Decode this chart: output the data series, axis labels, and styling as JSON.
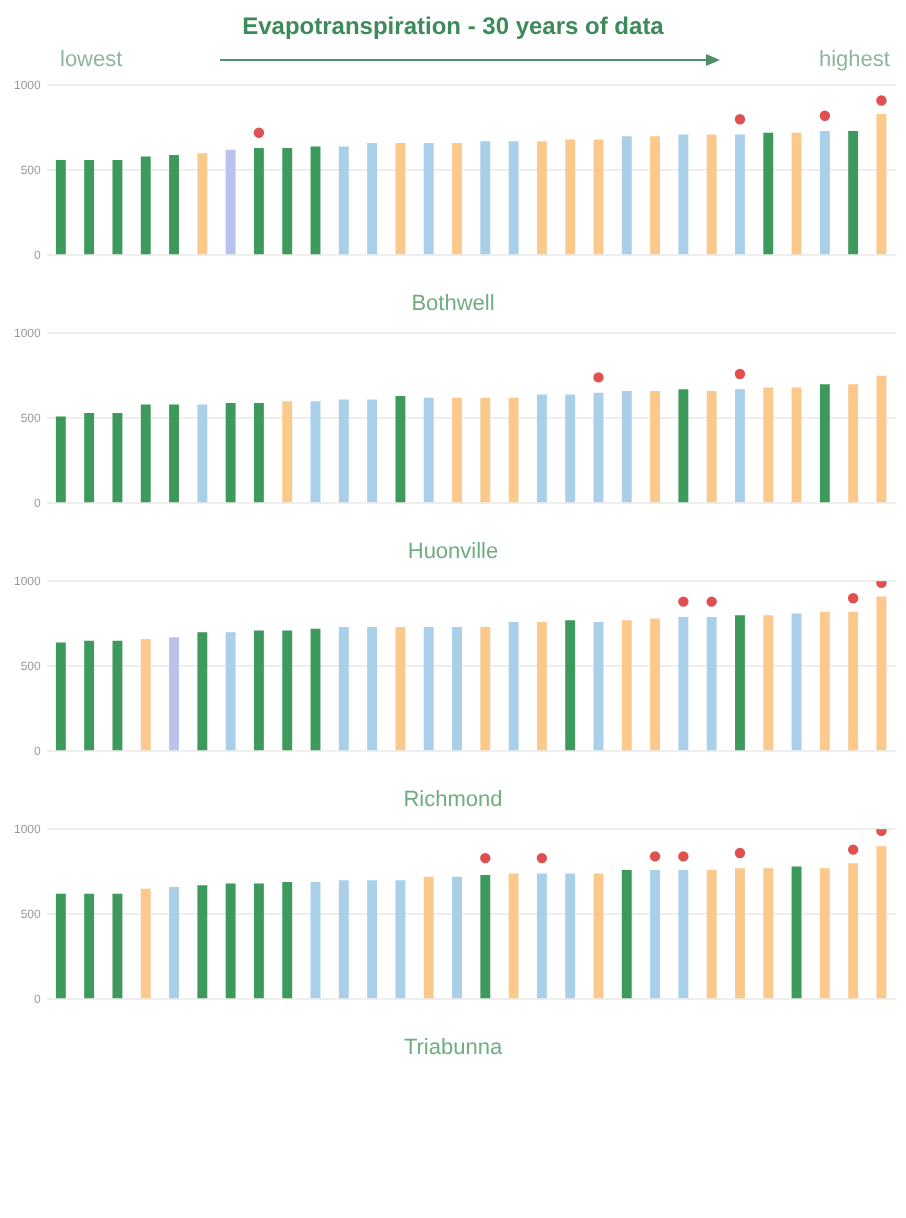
{
  "chart_data": [
    {
      "type": "bar",
      "title": "Evapotranspiration - 30 years of data",
      "annotations": [
        "lowest",
        "highest"
      ],
      "xlabel": "Bothwell",
      "categories": [
        null,
        null,
        null,
        null,
        null,
        null,
        null,
        null,
        null,
        null,
        null,
        null,
        null,
        null,
        null,
        null,
        null,
        null,
        null,
        null,
        null,
        null,
        null,
        null,
        null,
        null,
        null,
        null,
        null,
        null
      ],
      "ylim": [
        0,
        1000
      ],
      "yticks": [
        0,
        500,
        1000
      ],
      "grid": "y",
      "legend": false,
      "marker": "circle",
      "series": [
        {
          "colors": [
            "#3d9a5c",
            "#3d9a5c",
            "#3d9a5c",
            "#3d9a5c",
            "#3d9a5c",
            "#fbc98c",
            "#b9c3ec",
            "#3d9a5c",
            "#3d9a5c",
            "#3d9a5c",
            "#a9cfe9",
            "#a9cfe9",
            "#fbc98c",
            "#a9cfe9",
            "#fbc98c",
            "#a9cfe9",
            "#a9cfe9",
            "#fbc98c",
            "#fbc98c",
            "#fbc98c",
            "#a9cfe9",
            "#fbc98c",
            "#a9cfe9",
            "#fbc98c",
            "#a9cfe9",
            "#3d9a5c",
            "#fbc98c",
            "#a9cfe9",
            "#3d9a5c",
            "#fbc98c"
          ],
          "values": [
            560,
            560,
            560,
            580,
            590,
            600,
            620,
            630,
            630,
            640,
            640,
            660,
            660,
            660,
            660,
            670,
            670,
            670,
            680,
            680,
            700,
            700,
            710,
            710,
            710,
            720,
            720,
            730,
            730,
            830
          ]
        },
        {
          "type": "scatter",
          "color": "#e05050",
          "values": [
            null,
            null,
            null,
            null,
            null,
            null,
            null,
            720,
            null,
            null,
            null,
            null,
            null,
            null,
            null,
            null,
            null,
            null,
            null,
            null,
            null,
            null,
            null,
            null,
            800,
            null,
            null,
            820,
            null,
            910
          ]
        }
      ]
    },
    {
      "type": "bar",
      "xlabel": "Huonville",
      "categories": [
        null,
        null,
        null,
        null,
        null,
        null,
        null,
        null,
        null,
        null,
        null,
        null,
        null,
        null,
        null,
        null,
        null,
        null,
        null,
        null,
        null,
        null,
        null,
        null,
        null,
        null,
        null,
        null,
        null,
        null
      ],
      "ylim": [
        0,
        1000
      ],
      "yticks": [
        0,
        500,
        1000
      ],
      "grid": "y",
      "legend": false,
      "marker": "circle",
      "series": [
        {
          "colors": [
            "#3d9a5c",
            "#3d9a5c",
            "#3d9a5c",
            "#3d9a5c",
            "#3d9a5c",
            "#a9cfe9",
            "#3d9a5c",
            "#3d9a5c",
            "#fbc98c",
            "#a9cfe9",
            "#a9cfe9",
            "#a9cfe9",
            "#3d9a5c",
            "#a9cfe9",
            "#fbc98c",
            "#fbc98c",
            "#fbc98c",
            "#a9cfe9",
            "#a9cfe9",
            "#a9cfe9",
            "#a9cfe9",
            "#fbc98c",
            "#3d9a5c",
            "#fbc98c",
            "#a9cfe9",
            "#fbc98c",
            "#fbc98c",
            "#3d9a5c",
            "#fbc98c",
            "#fbc98c"
          ],
          "values": [
            510,
            530,
            530,
            580,
            580,
            580,
            590,
            590,
            600,
            600,
            610,
            610,
            630,
            620,
            620,
            620,
            620,
            640,
            640,
            650,
            660,
            660,
            670,
            660,
            670,
            680,
            680,
            700,
            700,
            750
          ]
        },
        {
          "type": "scatter",
          "color": "#e05050",
          "values": [
            null,
            null,
            null,
            null,
            null,
            null,
            null,
            null,
            null,
            null,
            null,
            null,
            null,
            null,
            null,
            null,
            null,
            null,
            null,
            740,
            null,
            null,
            null,
            null,
            760,
            null,
            null,
            null,
            null,
            null
          ]
        }
      ]
    },
    {
      "type": "bar",
      "xlabel": "Richmond",
      "categories": [
        null,
        null,
        null,
        null,
        null,
        null,
        null,
        null,
        null,
        null,
        null,
        null,
        null,
        null,
        null,
        null,
        null,
        null,
        null,
        null,
        null,
        null,
        null,
        null,
        null,
        null,
        null,
        null,
        null,
        null
      ],
      "ylim": [
        0,
        1000
      ],
      "yticks": [
        0,
        500,
        1000
      ],
      "grid": "y",
      "legend": false,
      "marker": "circle",
      "series": [
        {
          "colors": [
            "#3d9a5c",
            "#3d9a5c",
            "#3d9a5c",
            "#fbc98c",
            "#b9c3ec",
            "#3d9a5c",
            "#a9cfe9",
            "#3d9a5c",
            "#3d9a5c",
            "#3d9a5c",
            "#a9cfe9",
            "#a9cfe9",
            "#fbc98c",
            "#a9cfe9",
            "#a9cfe9",
            "#fbc98c",
            "#a9cfe9",
            "#fbc98c",
            "#3d9a5c",
            "#a9cfe9",
            "#fbc98c",
            "#fbc98c",
            "#a9cfe9",
            "#a9cfe9",
            "#3d9a5c",
            "#fbc98c",
            "#a9cfe9",
            "#fbc98c",
            "#fbc98c",
            "#fbc98c"
          ],
          "values": [
            640,
            650,
            650,
            660,
            670,
            700,
            700,
            710,
            710,
            720,
            730,
            730,
            730,
            730,
            730,
            730,
            760,
            760,
            770,
            760,
            770,
            780,
            790,
            790,
            800,
            800,
            810,
            820,
            820,
            910
          ]
        },
        {
          "type": "scatter",
          "color": "#e05050",
          "values": [
            null,
            null,
            null,
            null,
            null,
            null,
            null,
            null,
            null,
            null,
            null,
            null,
            null,
            null,
            null,
            null,
            null,
            null,
            null,
            null,
            null,
            null,
            880,
            880,
            null,
            null,
            null,
            null,
            900,
            990
          ]
        }
      ]
    },
    {
      "type": "bar",
      "xlabel": "Triabunna",
      "categories": [
        null,
        null,
        null,
        null,
        null,
        null,
        null,
        null,
        null,
        null,
        null,
        null,
        null,
        null,
        null,
        null,
        null,
        null,
        null,
        null,
        null,
        null,
        null,
        null,
        null,
        null,
        null,
        null,
        null,
        null
      ],
      "ylim": [
        0,
        1000
      ],
      "yticks": [
        0,
        500,
        1000
      ],
      "grid": "y",
      "legend": false,
      "marker": "circle",
      "series": [
        {
          "colors": [
            "#3d9a5c",
            "#3d9a5c",
            "#3d9a5c",
            "#fbc98c",
            "#a9cfe9",
            "#3d9a5c",
            "#3d9a5c",
            "#3d9a5c",
            "#3d9a5c",
            "#a9cfe9",
            "#a9cfe9",
            "#a9cfe9",
            "#a9cfe9",
            "#fbc98c",
            "#a9cfe9",
            "#3d9a5c",
            "#fbc98c",
            "#a9cfe9",
            "#a9cfe9",
            "#fbc98c",
            "#3d9a5c",
            "#a9cfe9",
            "#a9cfe9",
            "#fbc98c",
            "#fbc98c",
            "#fbc98c",
            "#3d9a5c",
            "#fbc98c",
            "#fbc98c",
            "#fbc98c"
          ],
          "values": [
            620,
            620,
            620,
            650,
            660,
            670,
            680,
            680,
            690,
            690,
            700,
            700,
            700,
            720,
            720,
            730,
            740,
            740,
            740,
            740,
            760,
            760,
            760,
            760,
            770,
            770,
            780,
            770,
            800,
            900
          ]
        },
        {
          "type": "scatter",
          "color": "#e05050",
          "values": [
            null,
            null,
            null,
            null,
            null,
            null,
            null,
            null,
            null,
            null,
            null,
            null,
            null,
            null,
            null,
            830,
            null,
            830,
            null,
            null,
            null,
            840,
            840,
            null,
            860,
            null,
            null,
            null,
            880,
            990
          ]
        }
      ]
    }
  ]
}
